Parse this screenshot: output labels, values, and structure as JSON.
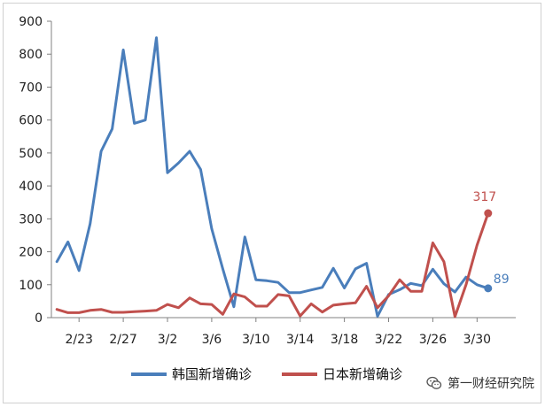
{
  "chart_data": {
    "type": "line",
    "title": "",
    "xlabel": "",
    "ylabel": "",
    "ylim": [
      0,
      900
    ],
    "y_ticks": [
      0,
      100,
      200,
      300,
      400,
      500,
      600,
      700,
      800,
      900
    ],
    "x_tick_labels": [
      "2/23",
      "2/27",
      "3/2",
      "3/6",
      "3/10",
      "3/14",
      "3/18",
      "3/22",
      "3/26",
      "3/30"
    ],
    "x": [
      "2/21",
      "2/22",
      "2/23",
      "2/24",
      "2/25",
      "2/26",
      "2/27",
      "2/28",
      "2/29",
      "3/1",
      "3/2",
      "3/3",
      "3/4",
      "3/5",
      "3/6",
      "3/7",
      "3/8",
      "3/9",
      "3/10",
      "3/11",
      "3/12",
      "3/13",
      "3/14",
      "3/15",
      "3/16",
      "3/17",
      "3/18",
      "3/19",
      "3/20",
      "3/21",
      "3/22",
      "3/23",
      "3/24",
      "3/25",
      "3/26",
      "3/27",
      "3/28",
      "3/29",
      "3/30",
      "3/31",
      "4/1",
      "4/2"
    ],
    "series": [
      {
        "name": "韩国新增确诊",
        "color": "#4a7ebb",
        "values": [
          170,
          230,
          143,
          285,
          505,
          573,
          813,
          590,
          600,
          850,
          440,
          470,
          505,
          450,
          270,
          148,
          33,
          245,
          115,
          112,
          107,
          76,
          76,
          84,
          92,
          150,
          90,
          148,
          165,
          4,
          70,
          85,
          104,
          97,
          147,
          103,
          78,
          123,
          100,
          89,
          null,
          null
        ],
        "end_label": "89"
      },
      {
        "name": "日本新增确诊",
        "color": "#c0504d",
        "values": [
          25,
          15,
          15,
          22,
          25,
          16,
          16,
          18,
          20,
          22,
          40,
          30,
          60,
          42,
          40,
          10,
          72,
          63,
          35,
          35,
          70,
          66,
          5,
          42,
          17,
          38,
          42,
          45,
          95,
          30,
          66,
          115,
          80,
          80,
          227,
          170,
          3,
          100,
          220,
          317,
          null,
          null
        ],
        "end_label": "317"
      }
    ],
    "grid": false,
    "legend_position": "bottom"
  },
  "watermark": {
    "text": "第一财经研究院",
    "icon": "wechat-icon"
  }
}
